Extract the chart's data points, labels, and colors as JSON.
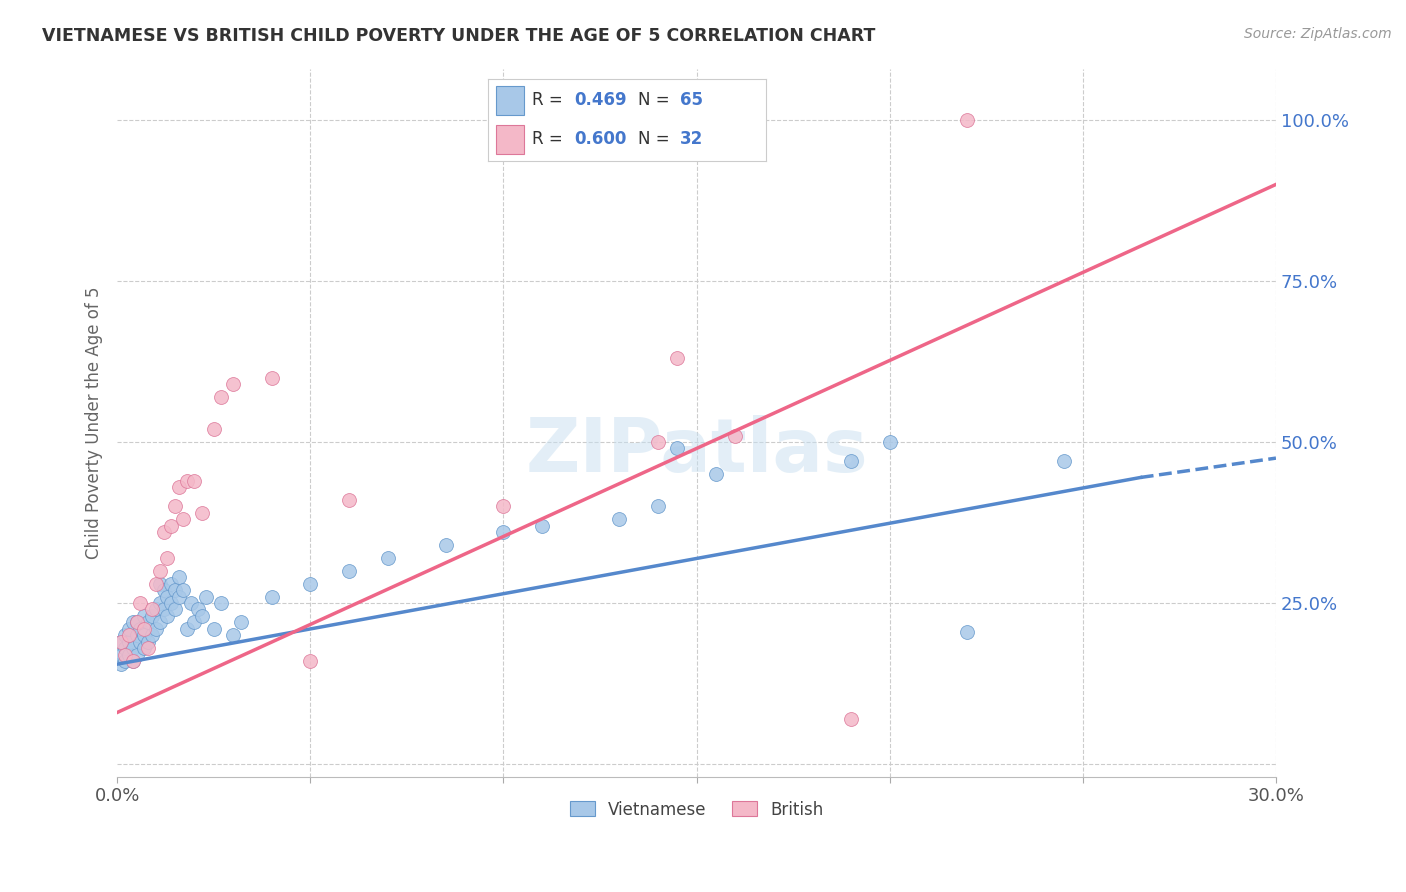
{
  "title": "VIETNAMESE VS BRITISH CHILD POVERTY UNDER THE AGE OF 5 CORRELATION CHART",
  "source": "Source: ZipAtlas.com",
  "ylabel": "Child Poverty Under the Age of 5",
  "xlim": [
    0.0,
    0.3
  ],
  "ylim": [
    -0.02,
    1.08
  ],
  "xticks": [
    0.0,
    0.05,
    0.1,
    0.15,
    0.2,
    0.25,
    0.3
  ],
  "yticks": [
    0.0,
    0.25,
    0.5,
    0.75,
    1.0
  ],
  "viet_color": "#a8c8e8",
  "brit_color": "#f4b8c8",
  "viet_edge_color": "#6699cc",
  "brit_edge_color": "#dd7799",
  "viet_line_color": "#5588cc",
  "brit_line_color": "#ee6688",
  "watermark": "ZIPatlas",
  "background_color": "#ffffff",
  "grid_color": "#cccccc",
  "viet_R": "0.469",
  "viet_N": "65",
  "brit_R": "0.600",
  "brit_N": "32",
  "tick_color": "#4477cc",
  "label_color": "#666666",
  "viet_scatter": [
    [
      0.001,
      0.155
    ],
    [
      0.001,
      0.17
    ],
    [
      0.001,
      0.19
    ],
    [
      0.002,
      0.16
    ],
    [
      0.002,
      0.18
    ],
    [
      0.002,
      0.2
    ],
    [
      0.003,
      0.17
    ],
    [
      0.003,
      0.19
    ],
    [
      0.003,
      0.21
    ],
    [
      0.004,
      0.16
    ],
    [
      0.004,
      0.18
    ],
    [
      0.004,
      0.22
    ],
    [
      0.005,
      0.17
    ],
    [
      0.005,
      0.2
    ],
    [
      0.005,
      0.22
    ],
    [
      0.006,
      0.19
    ],
    [
      0.006,
      0.21
    ],
    [
      0.007,
      0.18
    ],
    [
      0.007,
      0.2
    ],
    [
      0.007,
      0.23
    ],
    [
      0.008,
      0.19
    ],
    [
      0.008,
      0.22
    ],
    [
      0.009,
      0.2
    ],
    [
      0.009,
      0.23
    ],
    [
      0.01,
      0.21
    ],
    [
      0.01,
      0.24
    ],
    [
      0.011,
      0.22
    ],
    [
      0.011,
      0.25
    ],
    [
      0.011,
      0.28
    ],
    [
      0.012,
      0.24
    ],
    [
      0.012,
      0.27
    ],
    [
      0.013,
      0.23
    ],
    [
      0.013,
      0.26
    ],
    [
      0.014,
      0.25
    ],
    [
      0.014,
      0.28
    ],
    [
      0.015,
      0.24
    ],
    [
      0.015,
      0.27
    ],
    [
      0.016,
      0.26
    ],
    [
      0.016,
      0.29
    ],
    [
      0.017,
      0.27
    ],
    [
      0.018,
      0.21
    ],
    [
      0.019,
      0.25
    ],
    [
      0.02,
      0.22
    ],
    [
      0.021,
      0.24
    ],
    [
      0.022,
      0.23
    ],
    [
      0.023,
      0.26
    ],
    [
      0.025,
      0.21
    ],
    [
      0.027,
      0.25
    ],
    [
      0.03,
      0.2
    ],
    [
      0.032,
      0.22
    ],
    [
      0.04,
      0.26
    ],
    [
      0.05,
      0.28
    ],
    [
      0.06,
      0.3
    ],
    [
      0.07,
      0.32
    ],
    [
      0.085,
      0.34
    ],
    [
      0.1,
      0.36
    ],
    [
      0.11,
      0.37
    ],
    [
      0.13,
      0.38
    ],
    [
      0.14,
      0.4
    ],
    [
      0.145,
      0.49
    ],
    [
      0.155,
      0.45
    ],
    [
      0.19,
      0.47
    ],
    [
      0.2,
      0.5
    ],
    [
      0.245,
      0.47
    ],
    [
      0.22,
      0.205
    ]
  ],
  "brit_scatter": [
    [
      0.001,
      0.19
    ],
    [
      0.002,
      0.17
    ],
    [
      0.003,
      0.2
    ],
    [
      0.004,
      0.16
    ],
    [
      0.005,
      0.22
    ],
    [
      0.006,
      0.25
    ],
    [
      0.007,
      0.21
    ],
    [
      0.008,
      0.18
    ],
    [
      0.009,
      0.24
    ],
    [
      0.01,
      0.28
    ],
    [
      0.011,
      0.3
    ],
    [
      0.012,
      0.36
    ],
    [
      0.013,
      0.32
    ],
    [
      0.014,
      0.37
    ],
    [
      0.015,
      0.4
    ],
    [
      0.016,
      0.43
    ],
    [
      0.017,
      0.38
    ],
    [
      0.018,
      0.44
    ],
    [
      0.02,
      0.44
    ],
    [
      0.022,
      0.39
    ],
    [
      0.025,
      0.52
    ],
    [
      0.027,
      0.57
    ],
    [
      0.03,
      0.59
    ],
    [
      0.04,
      0.6
    ],
    [
      0.05,
      0.16
    ],
    [
      0.06,
      0.41
    ],
    [
      0.1,
      0.4
    ],
    [
      0.14,
      0.5
    ],
    [
      0.16,
      0.51
    ],
    [
      0.19,
      0.07
    ],
    [
      0.22,
      1.0
    ],
    [
      0.145,
      0.63
    ]
  ],
  "viet_line_x": [
    0.0,
    0.265,
    0.3
  ],
  "viet_line_y": [
    0.155,
    0.445,
    0.475
  ],
  "brit_line_x": [
    0.0,
    0.3
  ],
  "brit_line_y": [
    0.08,
    0.9
  ]
}
